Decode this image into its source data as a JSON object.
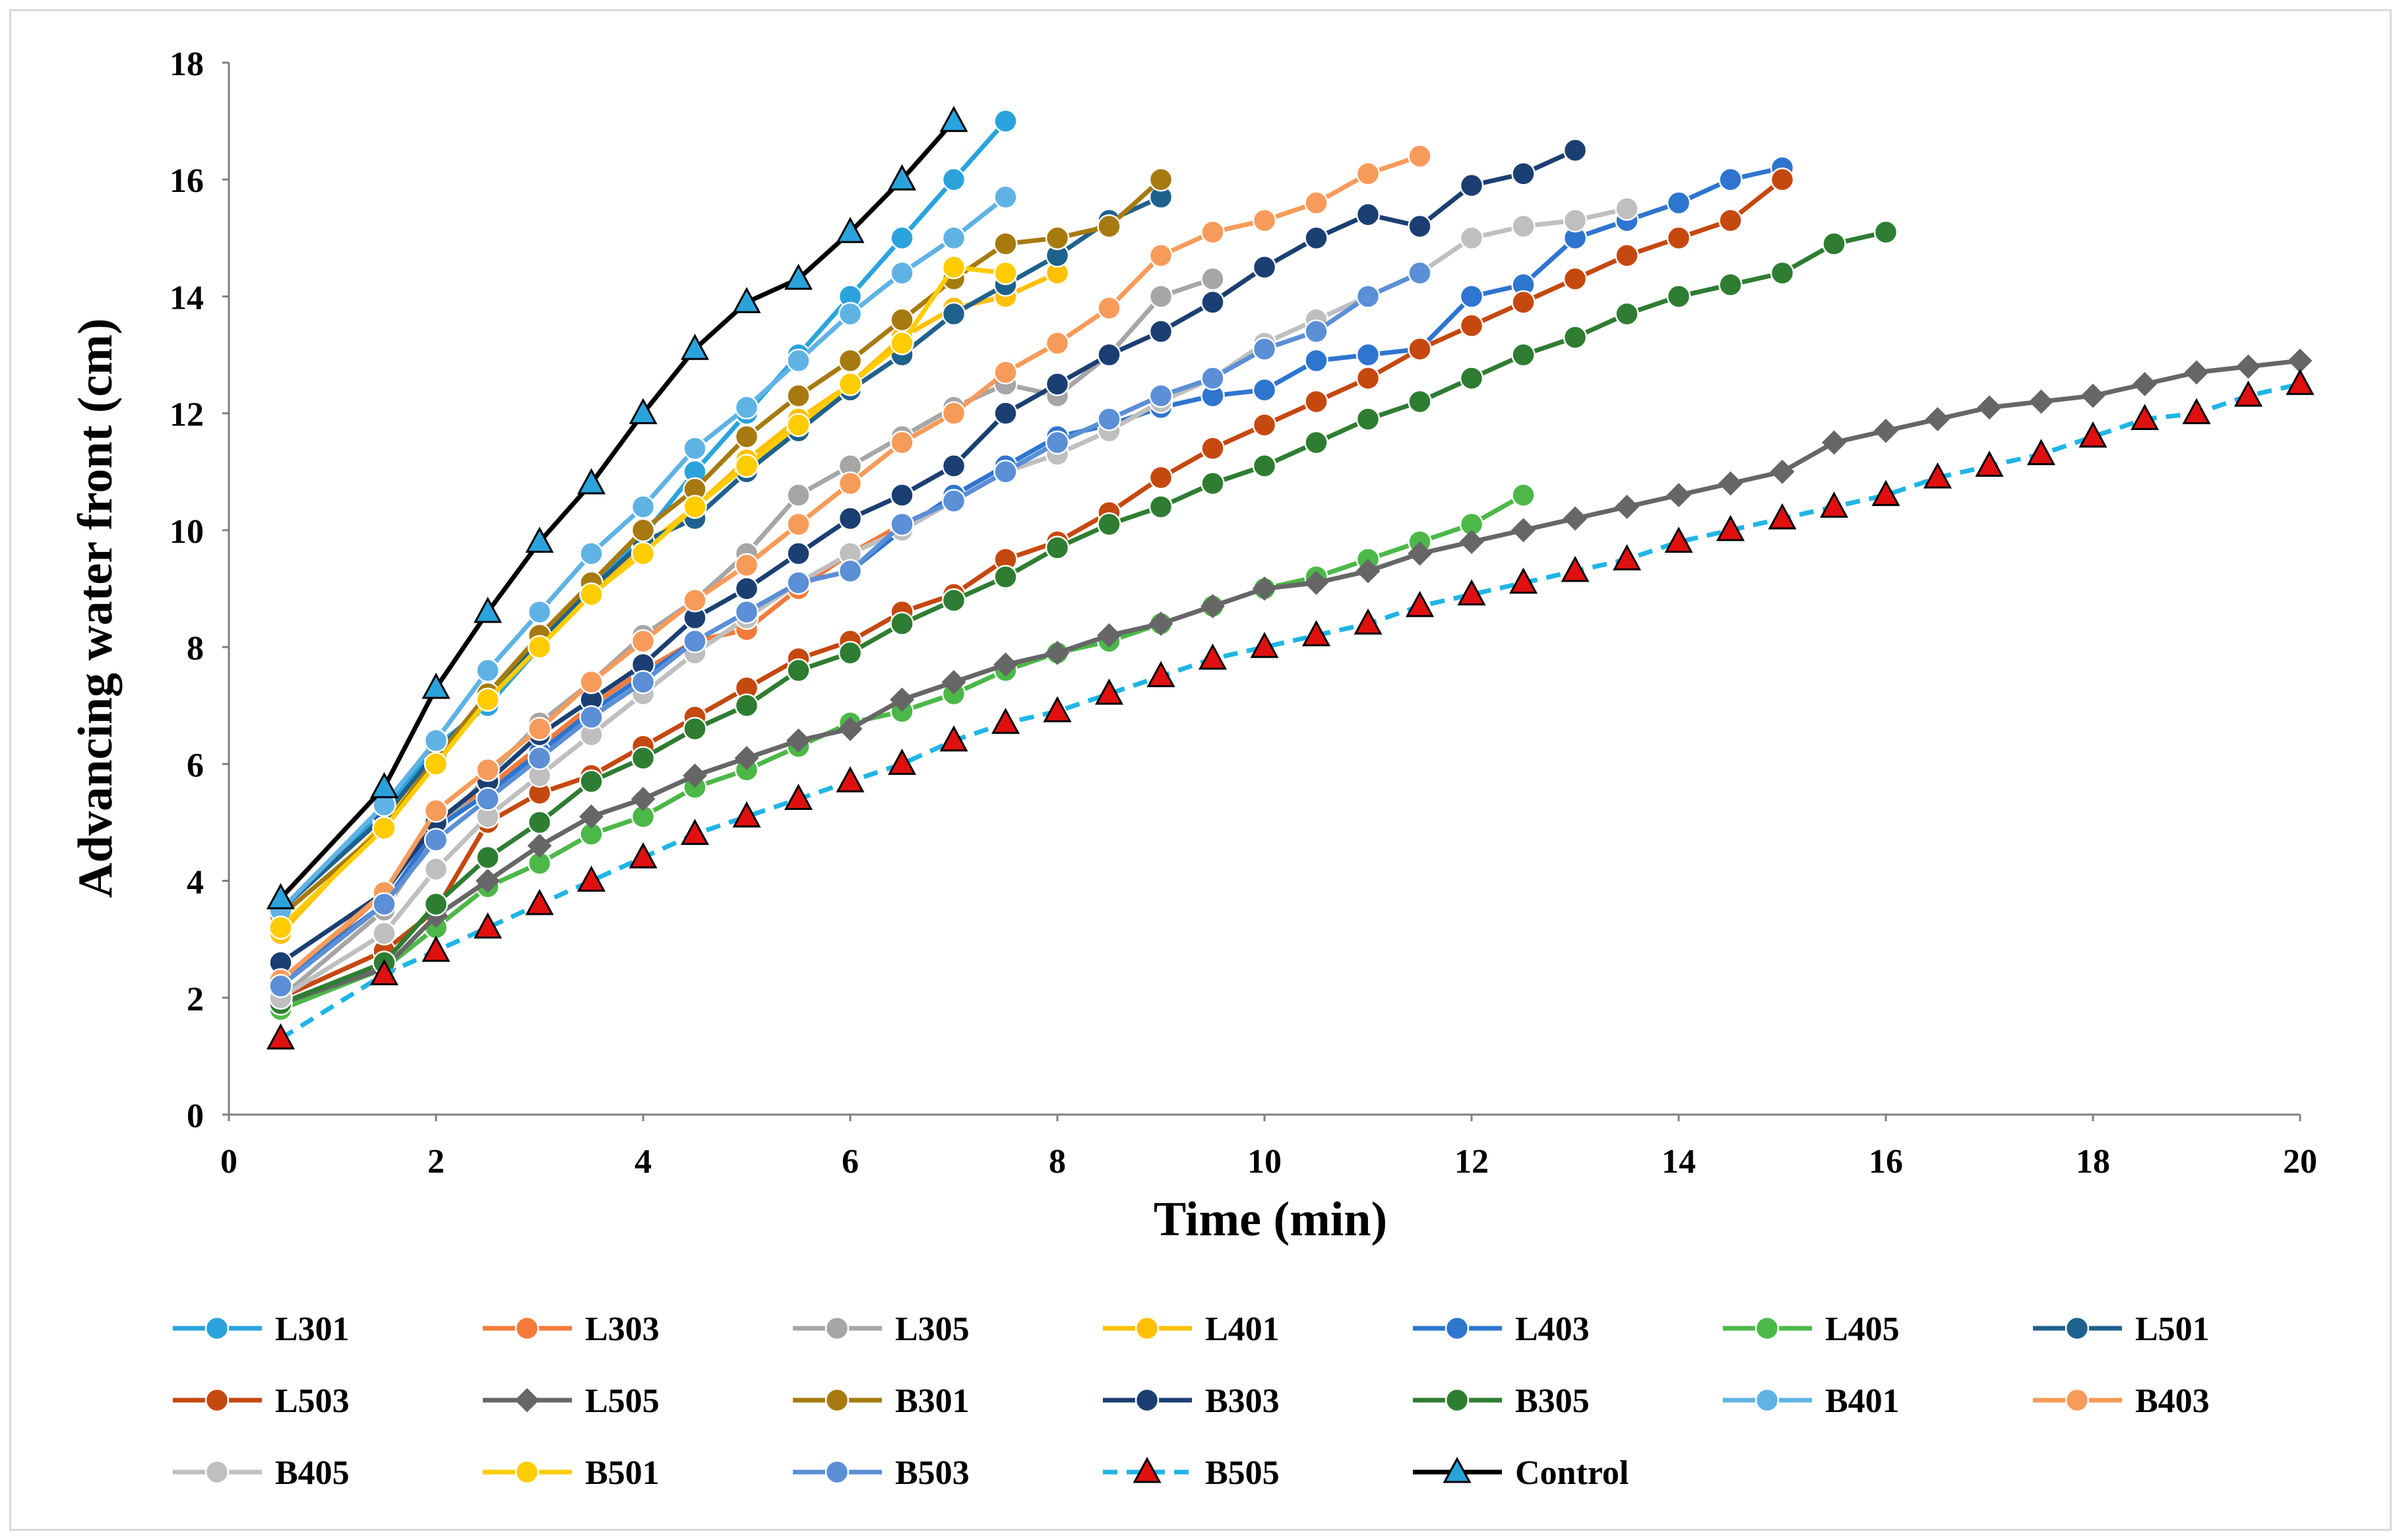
{
  "chart_data": {
    "type": "line",
    "title": "",
    "xlabel": "Time (min)",
    "ylabel": "Advancing water front (cm)",
    "xlim": [
      0,
      20
    ],
    "ylim": [
      0,
      18
    ],
    "xticks": [
      0,
      2,
      4,
      6,
      8,
      10,
      12,
      14,
      16,
      18,
      20
    ],
    "yticks": [
      0,
      2,
      4,
      6,
      8,
      10,
      12,
      14,
      16,
      18
    ],
    "grid": false,
    "legend_position": "bottom",
    "series": [
      {
        "name": "L301",
        "color": "#2aa3dc",
        "marker": "circle",
        "dash": false,
        "x": [
          0.5,
          1.5,
          2,
          2.5,
          3,
          3.5,
          4,
          4.5,
          5,
          5.5,
          6,
          6.5,
          7,
          7.5
        ],
        "y": [
          3.5,
          5.2,
          6.3,
          7.0,
          8.0,
          9.0,
          9.9,
          11.0,
          12.0,
          13.0,
          14.0,
          15.0,
          16.0,
          17.0
        ]
      },
      {
        "name": "L303",
        "color": "#f47a3a",
        "marker": "circle",
        "dash": false,
        "x": [
          0.5,
          1.5,
          2,
          2.5,
          3,
          3.5,
          4,
          4.5,
          5,
          5.5,
          6,
          6.5,
          7
        ],
        "y": [
          2.2,
          3.8,
          5.0,
          5.6,
          6.3,
          7.0,
          7.6,
          8.1,
          8.3,
          9.0,
          9.6,
          10.1,
          10.5
        ]
      },
      {
        "name": "L305",
        "color": "#a6a6a6",
        "marker": "circle",
        "dash": false,
        "x": [
          0.5,
          1.5,
          2,
          2.5,
          3,
          3.5,
          4,
          4.5,
          5,
          5.5,
          6,
          6.5,
          7,
          7.5,
          8,
          8.5,
          9,
          9.5
        ],
        "y": [
          2.0,
          3.5,
          4.8,
          5.8,
          6.7,
          7.4,
          8.2,
          8.8,
          9.6,
          10.6,
          11.1,
          11.6,
          12.1,
          12.5,
          12.3,
          13.0,
          14.0,
          14.3
        ]
      },
      {
        "name": "L401",
        "color": "#ffc000",
        "marker": "circle",
        "dash": false,
        "x": [
          0.5,
          1.5,
          2,
          2.5,
          3,
          3.5,
          4,
          4.5,
          5,
          5.5,
          6,
          6.5,
          7,
          7.5,
          8
        ],
        "y": [
          3.1,
          5.0,
          6.1,
          7.1,
          8.1,
          8.9,
          9.7,
          10.4,
          11.2,
          11.9,
          12.5,
          13.3,
          13.8,
          14.0,
          14.4
        ]
      },
      {
        "name": "L403",
        "color": "#2e75cf",
        "marker": "circle",
        "dash": false,
        "x": [
          0.5,
          1.5,
          2,
          2.5,
          3,
          3.5,
          4,
          4.5,
          5,
          5.5,
          6,
          6.5,
          7,
          7.5,
          8,
          8.5,
          9,
          9.5,
          10,
          10.5,
          11,
          11.5,
          12,
          12.5,
          13,
          13.5,
          14,
          14.5,
          15
        ],
        "y": [
          2.3,
          3.6,
          4.9,
          5.5,
          6.2,
          6.9,
          7.5,
          8.1,
          8.6,
          9.1,
          9.3,
          10.0,
          10.6,
          11.1,
          11.6,
          11.8,
          12.1,
          12.3,
          12.4,
          12.9,
          13.0,
          13.1,
          14.0,
          14.2,
          15.0,
          15.3,
          15.6,
          16.0,
          16.2
        ]
      },
      {
        "name": "L405",
        "color": "#4cb848",
        "marker": "circle",
        "dash": false,
        "x": [
          0.5,
          1.5,
          2,
          2.5,
          3,
          3.5,
          4,
          4.5,
          5,
          5.5,
          6,
          6.5,
          7,
          7.5,
          8,
          8.5,
          9,
          9.5,
          10,
          10.5,
          11,
          11.5,
          12,
          12.5
        ],
        "y": [
          1.8,
          2.5,
          3.2,
          3.9,
          4.3,
          4.8,
          5.1,
          5.6,
          5.9,
          6.3,
          6.7,
          6.9,
          7.2,
          7.6,
          7.9,
          8.1,
          8.4,
          8.7,
          9.0,
          9.2,
          9.5,
          9.8,
          10.1,
          10.6
        ]
      },
      {
        "name": "L501",
        "color": "#1f618d",
        "marker": "circle",
        "dash": false,
        "x": [
          0.5,
          1.5,
          2,
          2.5,
          3,
          3.5,
          4,
          4.5,
          5,
          5.5,
          6,
          6.5,
          7,
          7.5,
          8,
          8.5,
          9
        ],
        "y": [
          3.5,
          5.1,
          6.2,
          7.1,
          8.1,
          9.0,
          9.8,
          10.2,
          11.0,
          11.7,
          12.4,
          13.0,
          13.7,
          14.2,
          14.7,
          15.3,
          15.7
        ]
      },
      {
        "name": "L503",
        "color": "#c5480f",
        "marker": "circle",
        "dash": false,
        "x": [
          0.5,
          1.5,
          2,
          2.5,
          3,
          3.5,
          4,
          4.5,
          5,
          5.5,
          6,
          6.5,
          7,
          7.5,
          8,
          8.5,
          9,
          9.5,
          10,
          10.5,
          11,
          11.5,
          12,
          12.5,
          13,
          13.5,
          14,
          14.5,
          15
        ],
        "y": [
          2.0,
          2.8,
          3.5,
          5.0,
          5.5,
          5.8,
          6.3,
          6.8,
          7.3,
          7.8,
          8.1,
          8.6,
          8.9,
          9.5,
          9.8,
          10.3,
          10.9,
          11.4,
          11.8,
          12.2,
          12.6,
          13.1,
          13.5,
          13.9,
          14.3,
          14.7,
          15.0,
          15.3,
          16.0
        ]
      },
      {
        "name": "L505",
        "color": "#666666",
        "marker": "diamond",
        "dash": false,
        "x": [
          0.5,
          1.5,
          2,
          2.5,
          3,
          3.5,
          4,
          4.5,
          5,
          5.5,
          6,
          6.5,
          7,
          7.5,
          8,
          8.5,
          9,
          9.5,
          10,
          10.5,
          11,
          11.5,
          12,
          12.5,
          13,
          13.5,
          14,
          14.5,
          15,
          15.5,
          16,
          16.5,
          17,
          17.5,
          18,
          18.5,
          19,
          19.5,
          20
        ],
        "y": [
          1.9,
          2.5,
          3.4,
          4.0,
          4.6,
          5.1,
          5.4,
          5.8,
          6.1,
          6.4,
          6.6,
          7.1,
          7.4,
          7.7,
          7.9,
          8.2,
          8.4,
          8.7,
          9.0,
          9.1,
          9.3,
          9.6,
          9.8,
          10.0,
          10.2,
          10.4,
          10.6,
          10.8,
          11.0,
          11.5,
          11.7,
          11.9,
          12.1,
          12.2,
          12.3,
          12.5,
          12.7,
          12.8,
          12.9
        ]
      },
      {
        "name": "B301",
        "color": "#a67a0e",
        "marker": "circle",
        "dash": false,
        "x": [
          0.5,
          1.5,
          2,
          2.5,
          3,
          3.5,
          4,
          4.5,
          5,
          5.5,
          6,
          6.5,
          7,
          7.5,
          8,
          8.5,
          9
        ],
        "y": [
          3.4,
          4.9,
          6.1,
          7.2,
          8.2,
          9.1,
          10.0,
          10.7,
          11.6,
          12.3,
          12.9,
          13.6,
          14.3,
          14.9,
          15.0,
          15.2,
          16.0
        ]
      },
      {
        "name": "B303",
        "color": "#1b3f73",
        "marker": "circle",
        "dash": false,
        "x": [
          0.5,
          1.5,
          2,
          2.5,
          3,
          3.5,
          4,
          4.5,
          5,
          5.5,
          6,
          6.5,
          7,
          7.5,
          8,
          8.5,
          9,
          9.5,
          10,
          10.5,
          11,
          11.5,
          12,
          12.5,
          13
        ],
        "y": [
          2.6,
          3.8,
          5.0,
          5.7,
          6.5,
          7.1,
          7.7,
          8.5,
          9.0,
          9.6,
          10.2,
          10.6,
          11.1,
          12.0,
          12.5,
          13.0,
          13.4,
          13.9,
          14.5,
          15.0,
          15.4,
          15.2,
          15.9,
          16.1,
          16.5
        ]
      },
      {
        "name": "B305",
        "color": "#2e7d32",
        "marker": "circle",
        "dash": false,
        "x": [
          0.5,
          1.5,
          2,
          2.5,
          3,
          3.5,
          4,
          4.5,
          5,
          5.5,
          6,
          6.5,
          7,
          7.5,
          8,
          8.5,
          9,
          9.5,
          10,
          10.5,
          11,
          11.5,
          12,
          12.5,
          13,
          13.5,
          14,
          14.5,
          15,
          15.5,
          16
        ],
        "y": [
          1.9,
          2.6,
          3.6,
          4.4,
          5.0,
          5.7,
          6.1,
          6.6,
          7.0,
          7.6,
          7.9,
          8.4,
          8.8,
          9.2,
          9.7,
          10.1,
          10.4,
          10.8,
          11.1,
          11.5,
          11.9,
          12.2,
          12.6,
          13.0,
          13.3,
          13.7,
          14.0,
          14.2,
          14.4,
          14.9,
          15.1
        ]
      },
      {
        "name": "B401",
        "color": "#5fb3e4",
        "marker": "circle",
        "dash": false,
        "x": [
          0.5,
          1.5,
          2,
          2.5,
          3,
          3.5,
          4,
          4.5,
          5,
          5.5,
          6,
          6.5,
          7,
          7.5
        ],
        "y": [
          3.5,
          5.3,
          6.4,
          7.6,
          8.6,
          9.6,
          10.4,
          11.4,
          12.1,
          12.9,
          13.7,
          14.4,
          15.0,
          15.7
        ]
      },
      {
        "name": "B403",
        "color": "#f79b5a",
        "marker": "circle",
        "dash": false,
        "x": [
          0.5,
          1.5,
          2,
          2.5,
          3,
          3.5,
          4,
          4.5,
          5,
          5.5,
          6,
          6.5,
          7,
          7.5,
          8,
          8.5,
          9,
          9.5,
          10,
          10.5,
          11,
          11.5
        ],
        "y": [
          2.3,
          3.8,
          5.2,
          5.9,
          6.6,
          7.4,
          8.1,
          8.8,
          9.4,
          10.1,
          10.8,
          11.5,
          12.0,
          12.7,
          13.2,
          13.8,
          14.7,
          15.1,
          15.3,
          15.6,
          16.1,
          16.4
        ]
      },
      {
        "name": "B405",
        "color": "#bfbfbf",
        "marker": "circle",
        "dash": false,
        "x": [
          0.5,
          1.5,
          2,
          2.5,
          3,
          3.5,
          4,
          4.5,
          5,
          5.5,
          6,
          6.5,
          7,
          7.5,
          8,
          8.5,
          9,
          9.5,
          10,
          10.5,
          11,
          11.5,
          12,
          12.5,
          13,
          13.5
        ],
        "y": [
          2.0,
          3.1,
          4.2,
          5.1,
          5.8,
          6.5,
          7.2,
          7.9,
          8.5,
          9.1,
          9.6,
          10.0,
          10.5,
          11.0,
          11.3,
          11.7,
          12.2,
          12.6,
          13.2,
          13.6,
          14.0,
          14.4,
          15.0,
          15.2,
          15.3,
          15.5
        ]
      },
      {
        "name": "B501",
        "color": "#ffcc00",
        "marker": "circle",
        "dash": false,
        "x": [
          0.5,
          1.5,
          2,
          2.5,
          3,
          3.5,
          4,
          4.5,
          5,
          5.5,
          6,
          6.5,
          7,
          7.5
        ],
        "y": [
          3.2,
          4.9,
          6.0,
          7.1,
          8.0,
          8.9,
          9.6,
          10.4,
          11.1,
          11.8,
          12.5,
          13.2,
          14.5,
          14.4
        ]
      },
      {
        "name": "B503",
        "color": "#5b8fd6",
        "marker": "circle",
        "dash": false,
        "x": [
          0.5,
          1.5,
          2,
          2.5,
          3,
          3.5,
          4,
          4.5,
          5,
          5.5,
          6,
          6.5,
          7,
          7.5,
          8,
          8.5,
          9,
          9.5,
          10,
          10.5,
          11,
          11.5
        ],
        "y": [
          2.2,
          3.6,
          4.7,
          5.4,
          6.1,
          6.8,
          7.4,
          8.1,
          8.6,
          9.1,
          9.3,
          10.1,
          10.5,
          11.0,
          11.5,
          11.9,
          12.3,
          12.6,
          13.1,
          13.4,
          14.0,
          14.4
        ]
      },
      {
        "name": "B505",
        "color": "#1fb5e6",
        "marker": "triangle",
        "marker_fill": "#e01010",
        "dash": true,
        "x": [
          0.5,
          1.5,
          2,
          2.5,
          3,
          3.5,
          4,
          4.5,
          5,
          5.5,
          6,
          6.5,
          7,
          7.5,
          8,
          8.5,
          9,
          9.5,
          10,
          10.5,
          11,
          11.5,
          12,
          12.5,
          13,
          13.5,
          14,
          14.5,
          15,
          15.5,
          16,
          16.5,
          17,
          17.5,
          18,
          18.5,
          19,
          19.5,
          20
        ],
        "y": [
          1.3,
          2.4,
          2.8,
          3.2,
          3.6,
          4.0,
          4.4,
          4.8,
          5.1,
          5.4,
          5.7,
          6.0,
          6.4,
          6.7,
          6.9,
          7.2,
          7.5,
          7.8,
          8.0,
          8.2,
          8.4,
          8.7,
          8.9,
          9.1,
          9.3,
          9.5,
          9.8,
          10.0,
          10.2,
          10.4,
          10.6,
          10.9,
          11.1,
          11.3,
          11.6,
          11.9,
          12.0,
          12.3,
          12.5
        ]
      },
      {
        "name": "Control",
        "color": "#000000",
        "marker": "triangle",
        "marker_fill": "#2aa3dc",
        "dash": false,
        "x": [
          0.5,
          1.5,
          2,
          2.5,
          3,
          3.5,
          4,
          4.5,
          5,
          5.5,
          6,
          6.5,
          7
        ],
        "y": [
          3.7,
          5.6,
          7.3,
          8.6,
          9.8,
          10.8,
          12.0,
          13.1,
          13.9,
          14.3,
          15.1,
          16.0,
          17.0
        ]
      }
    ]
  }
}
